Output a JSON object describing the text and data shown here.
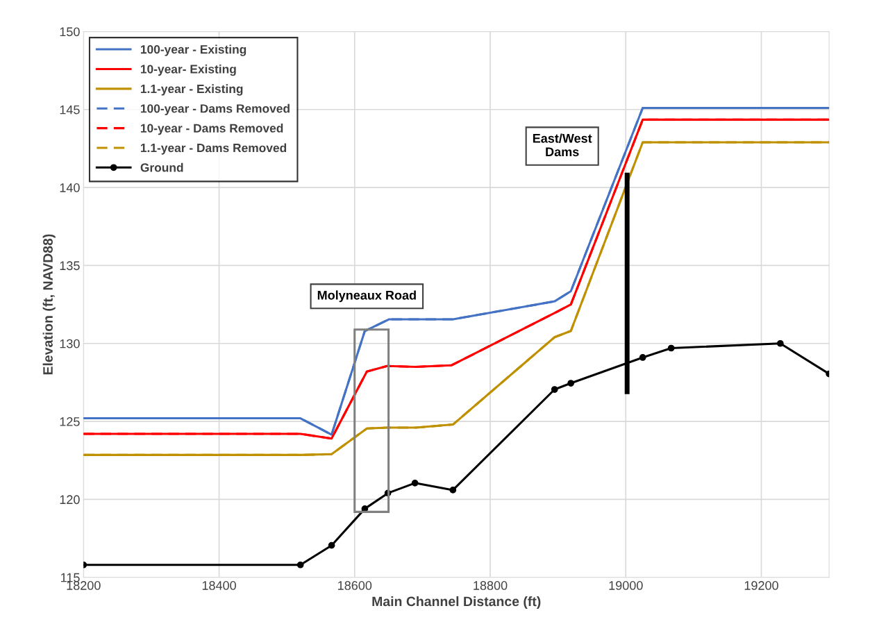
{
  "chart_data": {
    "type": "line",
    "xlabel": "Main Channel Distance (ft)",
    "ylabel": "Elevation (ft, NAVD88)",
    "xlim": [
      18200,
      19300
    ],
    "xticks": [
      18200,
      18400,
      18600,
      18800,
      19000,
      19200
    ],
    "ylim": [
      115,
      150
    ],
    "yticks": [
      115,
      120,
      125,
      130,
      135,
      140,
      145,
      150
    ],
    "grid": true,
    "legend": "top left",
    "marker": "none",
    "annotations": [
      "Molyneaux Road",
      "East/West\nDams"
    ],
    "series": [
      {
        "name": "100-year - Existing",
        "color": "#4472c4",
        "line_style": "solid",
        "x": [
          18200,
          18520,
          18566,
          18615,
          18651,
          18745,
          18895,
          18919,
          19025,
          19300
        ],
        "values": [
          125.2,
          125.2,
          124.15,
          130.8,
          131.55,
          131.55,
          132.7,
          133.35,
          145.1,
          145.1
        ]
      },
      {
        "name": "10-year- Existing",
        "color": "#ff0000",
        "line_style": "solid",
        "x": [
          18200,
          18520,
          18566,
          18618,
          18648,
          18690,
          18743,
          18895,
          18919,
          19025,
          19300
        ],
        "values": [
          124.2,
          124.2,
          123.9,
          128.2,
          128.55,
          128.5,
          128.6,
          131.95,
          132.5,
          144.35,
          144.35
        ]
      },
      {
        "name": "1.1-year - Existing",
        "color": "#bf9000",
        "line_style": "solid",
        "x": [
          18200,
          18520,
          18566,
          18618,
          18648,
          18690,
          18745,
          18895,
          18919,
          19025,
          19300
        ],
        "values": [
          122.85,
          122.85,
          122.9,
          124.55,
          124.6,
          124.6,
          124.8,
          130.4,
          130.8,
          142.9,
          142.9
        ]
      },
      {
        "name": "100-year - Dams Removed",
        "color": "#4472c4",
        "line_style": "dashed",
        "x": [
          18200,
          18520,
          18566,
          18615,
          18651,
          18745,
          18895,
          18919,
          19025,
          19300
        ],
        "values": [
          125.2,
          125.2,
          124.15,
          130.8,
          131.55,
          131.55,
          132.7,
          133.35,
          145.1,
          145.1
        ]
      },
      {
        "name": "10-year - Dams Removed",
        "color": "#ff0000",
        "line_style": "dashed",
        "x": [
          18200,
          18520,
          18566,
          18618,
          18648,
          18690,
          18743,
          18895,
          18919,
          19025,
          19300
        ],
        "values": [
          124.2,
          124.2,
          123.9,
          128.2,
          128.55,
          128.5,
          128.6,
          131.95,
          132.5,
          144.35,
          144.35
        ]
      },
      {
        "name": "1.1-year - Dams Removed",
        "color": "#bf9000",
        "line_style": "dashed",
        "x": [
          18200,
          18520,
          18566,
          18618,
          18648,
          18690,
          18745,
          18895,
          18919,
          19025,
          19300
        ],
        "values": [
          122.85,
          122.85,
          122.9,
          124.55,
          124.6,
          124.6,
          124.8,
          130.4,
          130.8,
          142.9,
          142.9
        ]
      },
      {
        "name": "Ground",
        "color": "#000000",
        "line_style": "solid",
        "marker": "circle",
        "x": [
          18200,
          18520,
          18566,
          18615,
          18649,
          18689,
          18745,
          18895,
          18919,
          19025,
          19067,
          19228,
          19300
        ],
        "values": [
          115.8,
          115.8,
          117.05,
          119.4,
          120.4,
          121.05,
          120.6,
          127.05,
          127.45,
          129.1,
          129.7,
          130.0,
          128.05
        ]
      },
      {
        "color": "#000000",
        "line_style": "solid",
        "x": [
          19002,
          19002
        ],
        "values": [
          126.9,
          140.8
        ]
      }
    ]
  }
}
